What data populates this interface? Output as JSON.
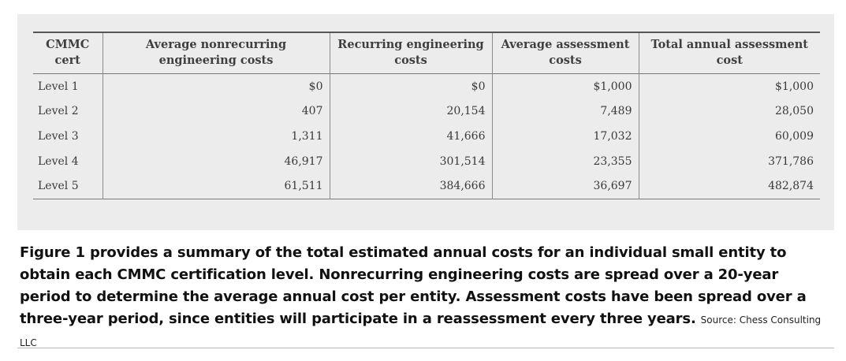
{
  "table": {
    "columns": [
      "CMMC cert",
      "Average nonrecurring engineering costs",
      "Recurring engineering costs",
      "Average assessment costs",
      "Total annual assessment cost"
    ],
    "rows": [
      [
        "Level 1",
        "$0",
        "$0",
        "$1,000",
        "$1,000"
      ],
      [
        "Level 2",
        "407",
        "20,154",
        "7,489",
        "28,050"
      ],
      [
        "Level 3",
        "1,311",
        "41,666",
        "17,032",
        "60,009"
      ],
      [
        "Level 4",
        "46,917",
        "301,514",
        "23,355",
        "371,786"
      ],
      [
        "Level 5",
        "61,511",
        "384,666",
        "36,697",
        "482,874"
      ]
    ]
  },
  "caption": {
    "text": "Figure 1 provides a summary of the total estimated annual costs for an individual small entity to obtain each CMMC certification level. Nonrecurring engineering costs are spread over a 20-year period to determine the average annual cost per entity. Assessment costs have been spread over a three-year period, since entities will participate in a reassessment every three years.",
    "source": "Source: Chess Consulting LLC"
  }
}
